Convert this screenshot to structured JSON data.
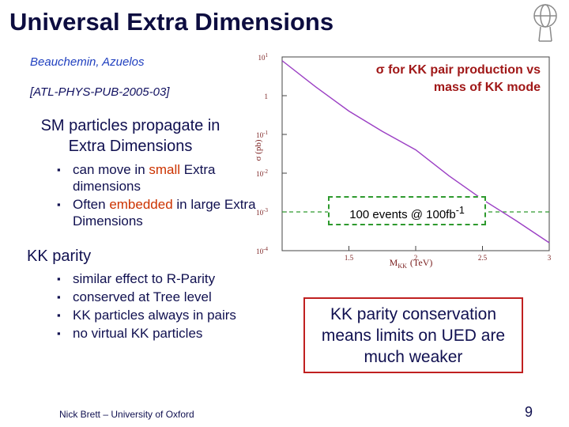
{
  "header": {
    "title": "Universal Extra Dimensions"
  },
  "left": {
    "authors": "Beauchemin, Azuelos",
    "reference": "[ATL-PHYS-PUB-2005-03]",
    "sections": [
      {
        "heading": "SM particles propagate in Extra Dimensions",
        "bullets": [
          {
            "parts": [
              "can move in ",
              "small",
              " Extra dimensions"
            ]
          },
          {
            "parts": [
              "Often ",
              "embedded",
              " in large Extra Dimensions"
            ]
          }
        ]
      },
      {
        "heading": "KK parity",
        "bullets": [
          {
            "parts": [
              "similar effect to R-Parity"
            ]
          },
          {
            "parts": [
              "conserved at Tree level"
            ]
          },
          {
            "parts": [
              "KK particles always in pairs"
            ]
          },
          {
            "parts": [
              "no virtual KK particles"
            ]
          }
        ]
      }
    ]
  },
  "chart_data": {
    "type": "line",
    "annotation": "σ for KK pair production vs mass of KK mode",
    "y_label": "σ (pb)",
    "x_label": {
      "main": "M",
      "sub": "KK",
      "unit": "(TeV)"
    },
    "x": [
      1,
      1.25,
      1.5,
      1.75,
      2,
      2.25,
      2.5,
      2.75,
      3
    ],
    "series": [
      {
        "color": "#9b3fc4",
        "values": [
          8,
          1.7,
          0.4,
          0.12,
          0.04,
          0.0085,
          0.0021,
          0.0006,
          0.00016
        ]
      }
    ],
    "log_y": true,
    "xlim": [
      1,
      3
    ],
    "ylim": [
      0.0001,
      10
    ],
    "xticks": [
      1.5,
      2,
      2.5,
      3
    ],
    "yticks": [
      {
        "value": 10,
        "label": "10",
        "sup": "1"
      },
      {
        "value": 1,
        "label": "1"
      },
      {
        "value": 0.1,
        "label": "10",
        "sup": "-1"
      },
      {
        "value": 0.01,
        "label": "10",
        "sup": "-2"
      },
      {
        "value": 0.001,
        "label": "10",
        "sup": "-3"
      },
      {
        "value": 0.0001,
        "label": "10",
        "sup": "-4"
      }
    ],
    "reference_line": {
      "value": 0.001,
      "color": "#2e9a2e",
      "label": "100 events @ 100fb",
      "sup": "-1"
    }
  },
  "conclusion": "KK parity conservation means limits on UED are much weaker",
  "footer": {
    "author": "Nick Brett – University of Oxford",
    "page": "9"
  }
}
